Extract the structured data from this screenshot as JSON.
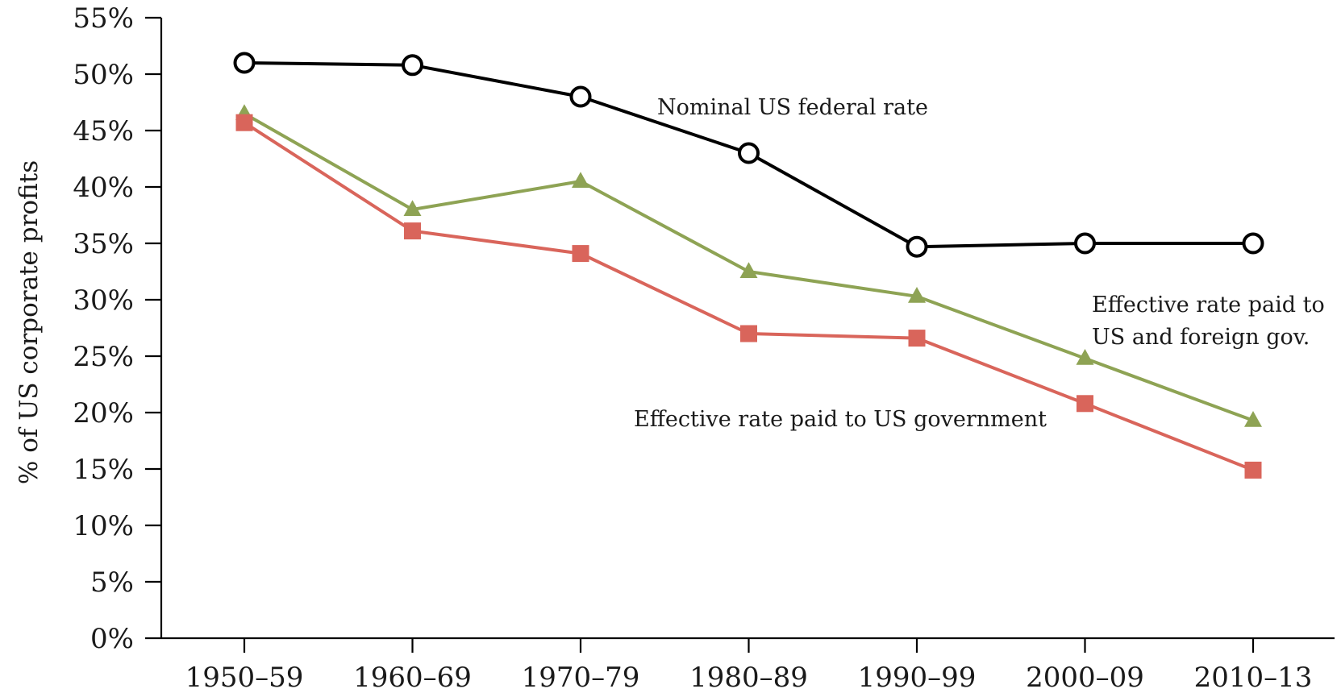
{
  "chart_data": {
    "type": "line",
    "categories": [
      "1950–59",
      "1960–69",
      "1970–79",
      "1980–89",
      "1990–99",
      "2000–09",
      "2010–13"
    ],
    "ylabel": "% of US corporate profits",
    "ylim": [
      0,
      55
    ],
    "yticks": [
      0,
      5,
      10,
      15,
      20,
      25,
      30,
      35,
      40,
      45,
      50,
      55
    ],
    "ytick_suffix": "%",
    "grid": false,
    "series": [
      {
        "key": "nominal",
        "values": [
          51.0,
          50.8,
          48.0,
          43.0,
          34.7,
          35.0,
          35.0
        ],
        "color": "#000000",
        "marker": "open-circle"
      },
      {
        "key": "us-foreign",
        "values": [
          46.5,
          38.0,
          40.5,
          32.5,
          30.3,
          24.8,
          19.3
        ],
        "color": "#8ea354",
        "marker": "triangle"
      },
      {
        "key": "us-only",
        "values": [
          45.7,
          36.1,
          34.1,
          27.0,
          26.6,
          20.8,
          14.9
        ],
        "color": "#d9655b",
        "marker": "square"
      }
    ],
    "annotations": [
      {
        "key": "nominal",
        "lines": [
          "Nominal US federal rate"
        ]
      },
      {
        "key": "us-foreign",
        "lines": [
          "Effective rate paid to",
          "US and foreign gov."
        ]
      },
      {
        "key": "us-only",
        "lines": [
          "Effective rate paid to US government"
        ]
      }
    ]
  }
}
